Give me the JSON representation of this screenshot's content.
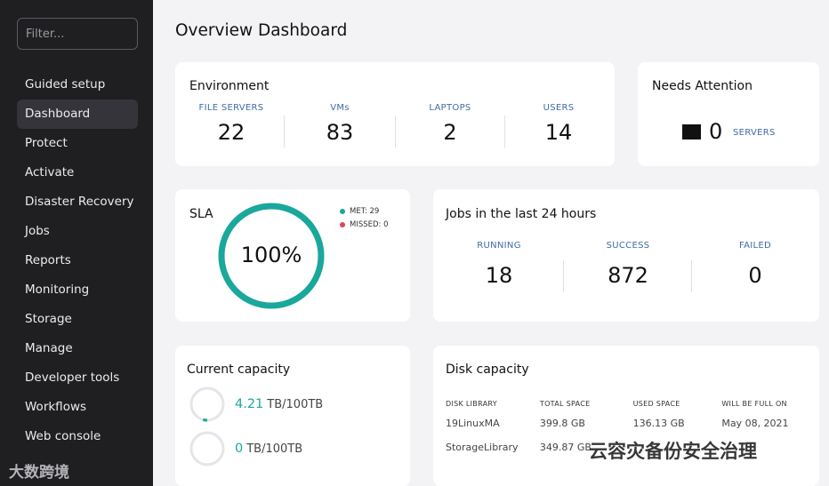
{
  "sidebar": {
    "filter_placeholder": "Filter...",
    "items": [
      {
        "label": "Guided setup"
      },
      {
        "label": "Dashboard"
      },
      {
        "label": "Protect"
      },
      {
        "label": "Activate"
      },
      {
        "label": "Disaster Recovery"
      },
      {
        "label": "Jobs"
      },
      {
        "label": "Reports"
      },
      {
        "label": "Monitoring"
      },
      {
        "label": "Storage"
      },
      {
        "label": "Manage"
      },
      {
        "label": "Developer tools"
      },
      {
        "label": "Workflows"
      },
      {
        "label": "Web console"
      }
    ],
    "active_item": "Dashboard"
  },
  "page": {
    "title": "Overview Dashboard"
  },
  "environment": {
    "title": "Environment",
    "stats": [
      {
        "label": "FILE SERVERS",
        "value": "22"
      },
      {
        "label": "VMs",
        "value": "83"
      },
      {
        "label": "LAPTOPS",
        "value": "2"
      },
      {
        "label": "USERS",
        "value": "14"
      }
    ]
  },
  "attention": {
    "title": "Needs Attention",
    "value": "0",
    "label": "SERVERS"
  },
  "sla": {
    "title": "SLA",
    "percent_text": "100%",
    "percent": 100,
    "met_text": "MET: 29",
    "missed_text": "MISSED: 0",
    "colors": {
      "met": "#1aa79c",
      "missed": "#e0445f"
    }
  },
  "jobs": {
    "title": "Jobs in the last 24 hours",
    "stats": [
      {
        "label": "RUNNING",
        "value": "18"
      },
      {
        "label": "SUCCESS",
        "value": "872"
      },
      {
        "label": "FAILED",
        "value": "0"
      }
    ]
  },
  "capacity": {
    "title": "Current capacity",
    "rows": [
      {
        "used": "4.21",
        "unit": "TB/100TB",
        "fraction": 0.042
      },
      {
        "used": "0",
        "unit": "TB/100TB",
        "fraction": 0
      }
    ]
  },
  "disk": {
    "title": "Disk capacity",
    "headers": [
      "DISK LIBRARY",
      "TOTAL SPACE",
      "USED SPACE",
      "WILL BE FULL ON"
    ],
    "rows": [
      [
        "19LinuxMA",
        "399.8 GB",
        "136.13 GB",
        "May 08, 2021"
      ],
      [
        "StorageLibrary",
        "349.87 GB",
        "",
        ""
      ]
    ]
  },
  "watermarks": {
    "left": "大数跨境",
    "right": "云容灾备份安全治理"
  },
  "colors": {
    "accent": "#1aa79c",
    "label_blue": "#3f6ca6",
    "sidebar": "#1f1f22"
  }
}
